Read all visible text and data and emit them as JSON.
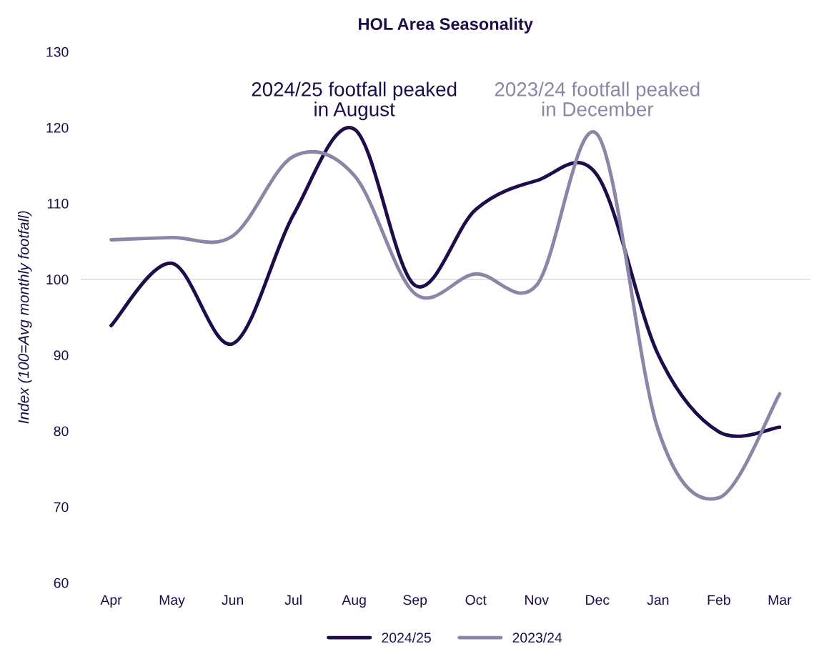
{
  "chart_data": {
    "type": "line",
    "title": "HOL Area Seasonality",
    "ylabel": "Index (100=Avg monthly footfall)",
    "categories": [
      "Apr",
      "May",
      "Jun",
      "Jul",
      "Aug",
      "Sep",
      "Oct",
      "Nov",
      "Dec",
      "Jan",
      "Feb",
      "Mar"
    ],
    "series": [
      {
        "name": "2024/25",
        "color": "#1f0c4a",
        "values": [
          93.9,
          102.1,
          91.5,
          108.5,
          119.8,
          99.2,
          109.2,
          113,
          113.7,
          90.1,
          79.9,
          80.5
        ]
      },
      {
        "name": "2023/24",
        "color": "#8c85a8",
        "values": [
          105.2,
          105.5,
          105.7,
          116.2,
          113.7,
          98.1,
          100.7,
          99.2,
          119.1,
          80.2,
          71.2,
          84.9
        ]
      }
    ],
    "ylim": [
      60,
      130
    ],
    "yticks": [
      60,
      70,
      80,
      90,
      100,
      110,
      120,
      130
    ],
    "grid": false,
    "ref_lines": [
      {
        "axis": "y",
        "value": 100,
        "color": "#d9d9d9"
      }
    ],
    "annotations": [
      "2024/25 footfall peaked\nin August",
      "2023/24 footfall peaked\nin December"
    ],
    "legend": "bottom",
    "line_style": "solid",
    "marker": "none"
  }
}
